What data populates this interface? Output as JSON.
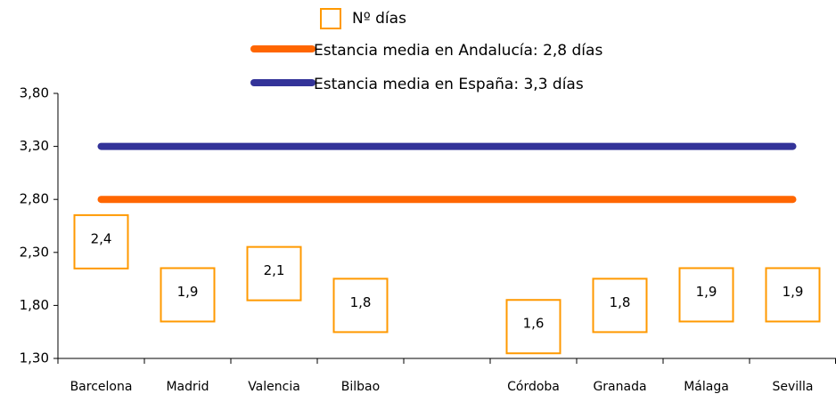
{
  "chart_data": {
    "type": "line",
    "categories": [
      "Barcelona",
      "Madrid",
      "Valencia",
      "Bilbao",
      null,
      "Córdoba",
      "Granada",
      "Málaga",
      "Sevilla"
    ],
    "series": [
      {
        "name": "Nº días",
        "color": "#ff9900",
        "marker": "hollow-square",
        "values": [
          2.4,
          1.9,
          2.1,
          1.8,
          null,
          1.6,
          1.8,
          1.9,
          1.9
        ],
        "value_labels": [
          "2,4",
          "1,9",
          "2,1",
          "1,8",
          null,
          "1,6",
          "1,8",
          "1,9",
          "1,9"
        ]
      },
      {
        "name": "Estancia media en Andalucía: 2,8 días",
        "color": "#ff6600",
        "values": [
          2.8,
          2.8,
          2.8,
          2.8,
          2.8,
          2.8,
          2.8,
          2.8,
          2.8
        ]
      },
      {
        "name": "Estancia media en España: 3,3 días",
        "color": "#333399",
        "values": [
          3.3,
          3.3,
          3.3,
          3.3,
          3.3,
          3.3,
          3.3,
          3.3,
          3.3
        ]
      }
    ],
    "ylim": [
      1.3,
      3.8
    ],
    "yticks": [
      {
        "value": 1.3,
        "label": "1,30"
      },
      {
        "value": 1.8,
        "label": "1,80"
      },
      {
        "value": 2.3,
        "label": "2,30"
      },
      {
        "value": 2.8,
        "label": "2,80"
      },
      {
        "value": 3.3,
        "label": "3,30"
      },
      {
        "value": 3.8,
        "label": "3,80"
      }
    ],
    "grid": false,
    "legend": "top"
  }
}
